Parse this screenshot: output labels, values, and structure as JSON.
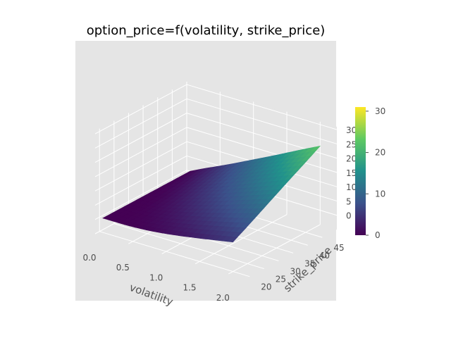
{
  "chart_data": {
    "type": "surface3d",
    "title": "option_price=f(volatility, strike_price)",
    "xlabel": "volatility",
    "ylabel": "strike_price",
    "zlabel": "",
    "xlim": [
      0.0,
      2.25
    ],
    "ylim": [
      18.5,
      50
    ],
    "zlim": [
      -5,
      31
    ],
    "x_ticks": [
      "0.0",
      "0.5",
      "1.0",
      "1.5",
      "2.0"
    ],
    "y_ticks": [
      "20",
      "25",
      "30",
      "35",
      "40",
      "45"
    ],
    "z_ticks": [
      "0",
      "5",
      "10",
      "15",
      "20",
      "25",
      "30"
    ],
    "colorbar": {
      "ticks": [
        "0",
        "10",
        "20",
        "30"
      ],
      "range": [
        0,
        31
      ],
      "colormap": "viridis"
    },
    "surface": {
      "volatility": [
        0.05,
        0.25,
        0.5,
        0.75,
        1.0,
        1.25,
        1.5,
        1.75,
        2.0
      ],
      "strike_price": [
        20,
        25,
        30,
        35,
        40,
        45,
        50
      ],
      "option_price": [
        [
          0.0,
          0.0,
          0.0,
          0.0,
          0.0,
          0.0,
          0.0
        ],
        [
          0.0,
          0.0,
          0.1,
          0.3,
          0.8,
          1.5,
          2.3
        ],
        [
          0.1,
          0.4,
          1.0,
          1.8,
          2.8,
          3.9,
          5.0
        ],
        [
          0.5,
          1.3,
          2.4,
          3.7,
          5.0,
          6.4,
          7.8
        ],
        [
          1.2,
          2.5,
          4.0,
          5.6,
          7.3,
          9.0,
          10.7
        ],
        [
          2.1,
          3.8,
          5.7,
          7.6,
          9.6,
          11.6,
          13.6
        ],
        [
          3.1,
          5.2,
          7.4,
          9.7,
          12.0,
          14.3,
          16.6
        ],
        [
          4.2,
          6.6,
          9.2,
          11.8,
          14.4,
          17.0,
          19.6
        ],
        [
          5.3,
          8.1,
          11.0,
          13.9,
          16.8,
          19.6,
          22.5
        ]
      ]
    }
  }
}
